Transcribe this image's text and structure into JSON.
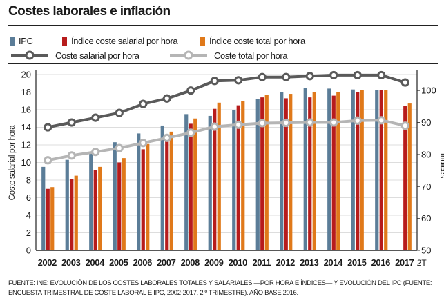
{
  "title": "Costes laborales e inflación",
  "legend": {
    "ipc": "IPC",
    "salarial_index": "Índice coste salarial por hora",
    "total_index": "Índice coste total por hora",
    "salarial_cost": "Coste salarial por hora",
    "total_cost": "Coste total por hora"
  },
  "source": "FUENTE: INE: EVOLUCIÓN DE LOS COSTES LABORALES TOTALES Y SALARIALES —POR HORA E ÍNDICES— Y EVOLUCIÓN DEL IPC (FUENTE: ENCUESTA TRIMESTRAL DE COSTE LABORAL E IPC, 2002-2017, 2.º TRIMESTRE). AÑO BASE 2016.",
  "colors": {
    "ipc": "#5b7d98",
    "salarial_index": "#b71c1c",
    "total_index": "#e0791a",
    "salarial_cost": "#5a5a5a",
    "total_cost": "#b5b5b5"
  },
  "chart_data": {
    "type": "bar",
    "categories": [
      "2002",
      "2003",
      "2004",
      "2005",
      "2006",
      "2007",
      "2008",
      "2009",
      "2010",
      "2011",
      "2012",
      "2013",
      "2014",
      "2015",
      "2016",
      "2017"
    ],
    "last_category_suffix": "2T",
    "ylabel_left": "Coste salarial por hora",
    "ylabel_right": "Índices",
    "ylim_left": [
      0,
      20
    ],
    "yticks_left": [
      0,
      2,
      4,
      6,
      8,
      10,
      12,
      14,
      16,
      18,
      20
    ],
    "ylim_right": [
      50,
      105
    ],
    "yticks_right": [
      50,
      60,
      70,
      80,
      90,
      100
    ],
    "grid": true,
    "bar_series": [
      {
        "name": "IPC",
        "axis": "left",
        "values": [
          9.5,
          10.3,
          11.0,
          12.3,
          13.3,
          14.2,
          15.5,
          15.3,
          16.0,
          17.2,
          18.0,
          18.5,
          18.4,
          18.3,
          18.2,
          null
        ]
      },
      {
        "name": "Índice coste salarial por hora",
        "axis": "left",
        "values": [
          7.0,
          8.1,
          9.1,
          10.0,
          11.5,
          12.5,
          14.4,
          16.1,
          16.5,
          17.4,
          17.3,
          17.4,
          17.6,
          18.0,
          18.2,
          16.4
        ]
      },
      {
        "name": "Índice coste total por hora",
        "axis": "left",
        "values": [
          7.2,
          8.5,
          9.5,
          10.5,
          12.1,
          13.5,
          15.0,
          16.8,
          17.0,
          17.7,
          17.8,
          18.0,
          18.0,
          18.2,
          18.2,
          16.7
        ]
      }
    ],
    "line_series": [
      {
        "name": "Coste salarial por hora",
        "axis": "right",
        "values": [
          88.5,
          90.0,
          91.5,
          93.0,
          95.8,
          97.5,
          100.0,
          103.0,
          103.2,
          104.2,
          104.2,
          104.5,
          104.8,
          104.8,
          104.8,
          102.5
        ]
      },
      {
        "name": "Coste total por hora",
        "axis": "right",
        "values": [
          78.2,
          79.7,
          80.8,
          82.0,
          83.6,
          85.2,
          86.8,
          88.7,
          89.3,
          89.8,
          89.9,
          90.0,
          90.0,
          90.6,
          90.7,
          89.0
        ]
      }
    ]
  }
}
